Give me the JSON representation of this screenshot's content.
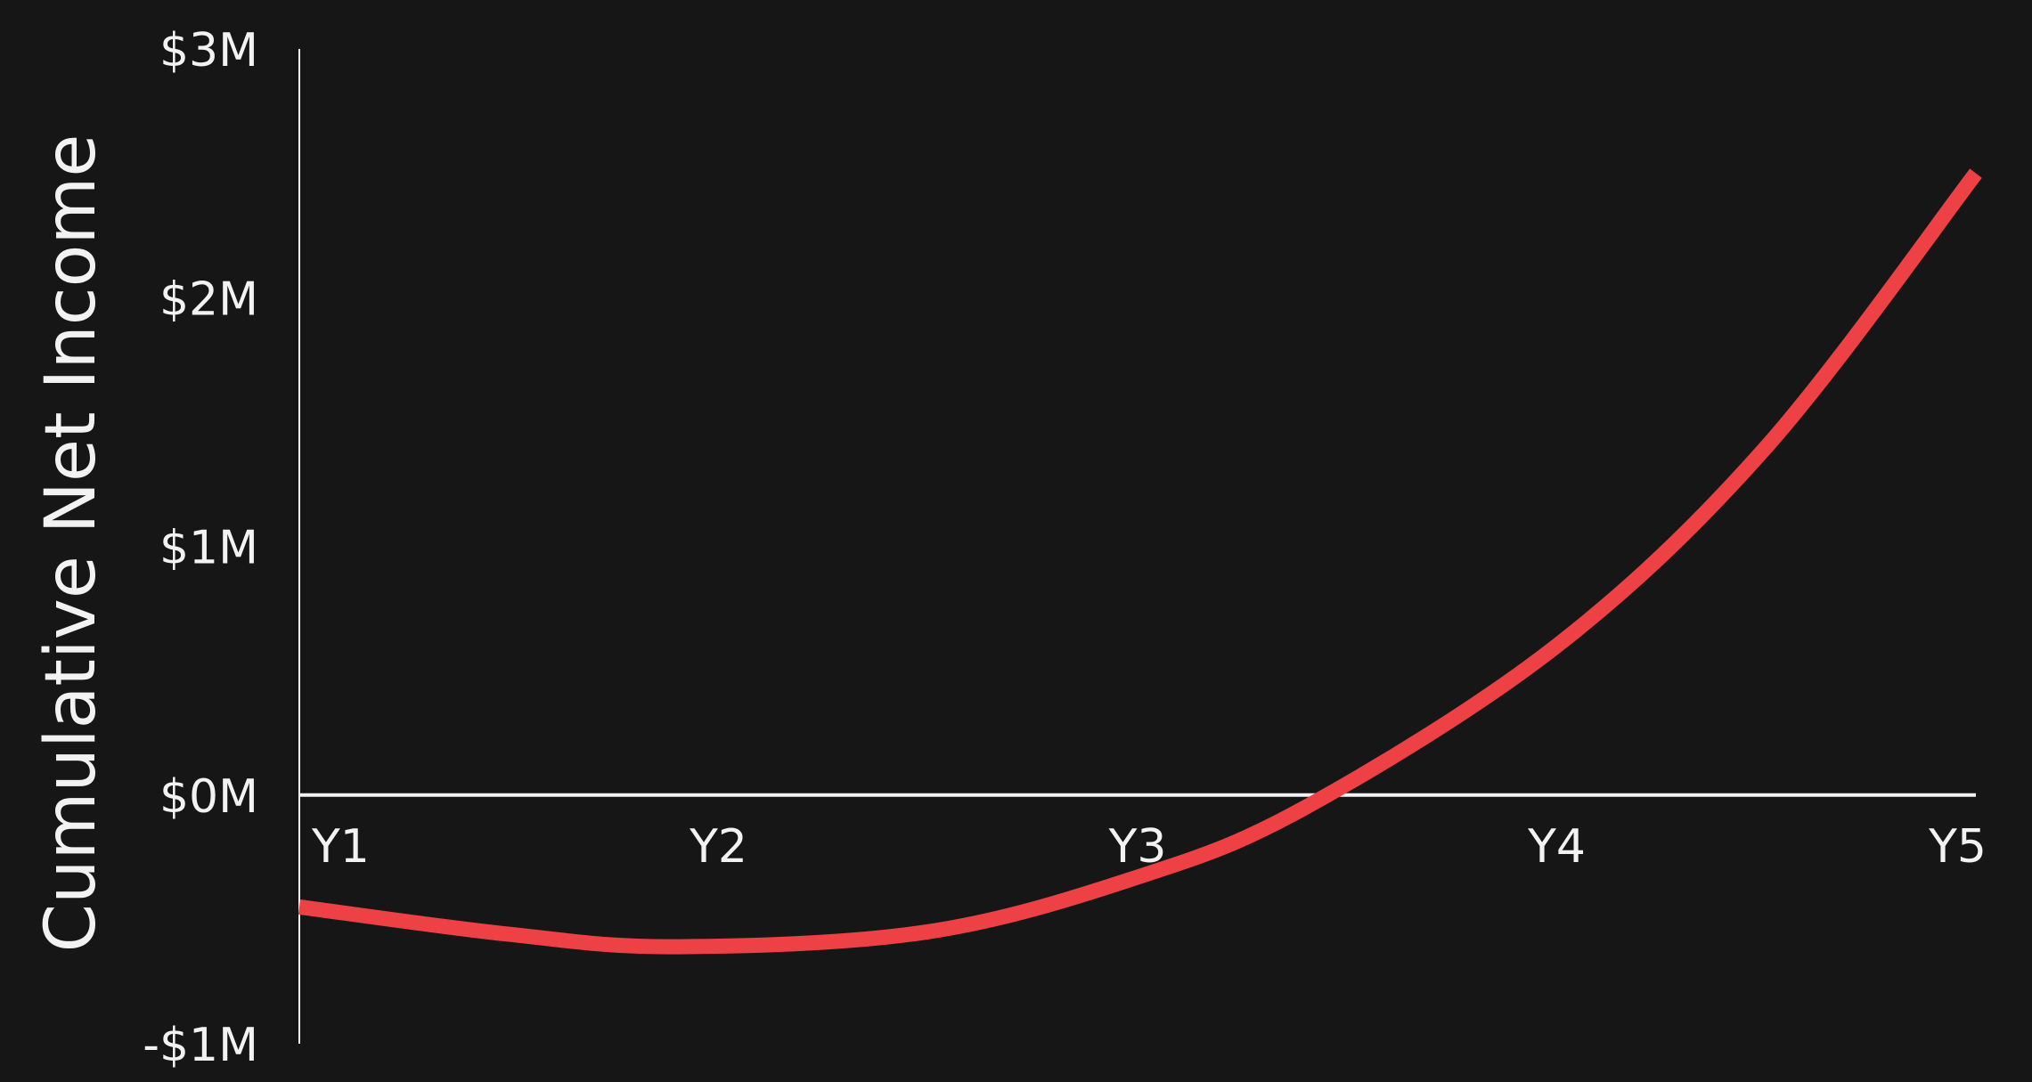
{
  "chart_data": {
    "type": "line",
    "title": "",
    "xlabel": "",
    "ylabel": "Cumulative Net Income",
    "categories": [
      "Y1",
      "Y2",
      "Y3",
      "Y4",
      "Y5"
    ],
    "x_ticks": [
      "Y1",
      "Y2",
      "Y3",
      "Y4",
      "Y5"
    ],
    "y_ticks": [
      {
        "value": 3,
        "label": "$3M"
      },
      {
        "value": 2,
        "label": "$2M"
      },
      {
        "value": 1,
        "label": "$1M"
      },
      {
        "value": 0,
        "label": "$0M"
      },
      {
        "value": -1,
        "label": "-$1M"
      }
    ],
    "ylim": [
      -1,
      3
    ],
    "y_unit": "$M",
    "grid": false,
    "legend": "none",
    "series": [
      {
        "x": [
          1.0,
          1.5,
          1.9,
          2.5,
          3.0,
          3.4,
          4.0,
          4.5,
          5.0
        ],
        "values": [
          -0.45,
          -0.56,
          -0.61,
          -0.55,
          -0.33,
          -0.05,
          0.6,
          1.4,
          2.5
        ],
        "color": "#ee4145"
      }
    ],
    "colors": {
      "background": "#161617",
      "axis": "#f2f2f2",
      "text": "#f2f2f2",
      "line": "#ee4145"
    }
  }
}
